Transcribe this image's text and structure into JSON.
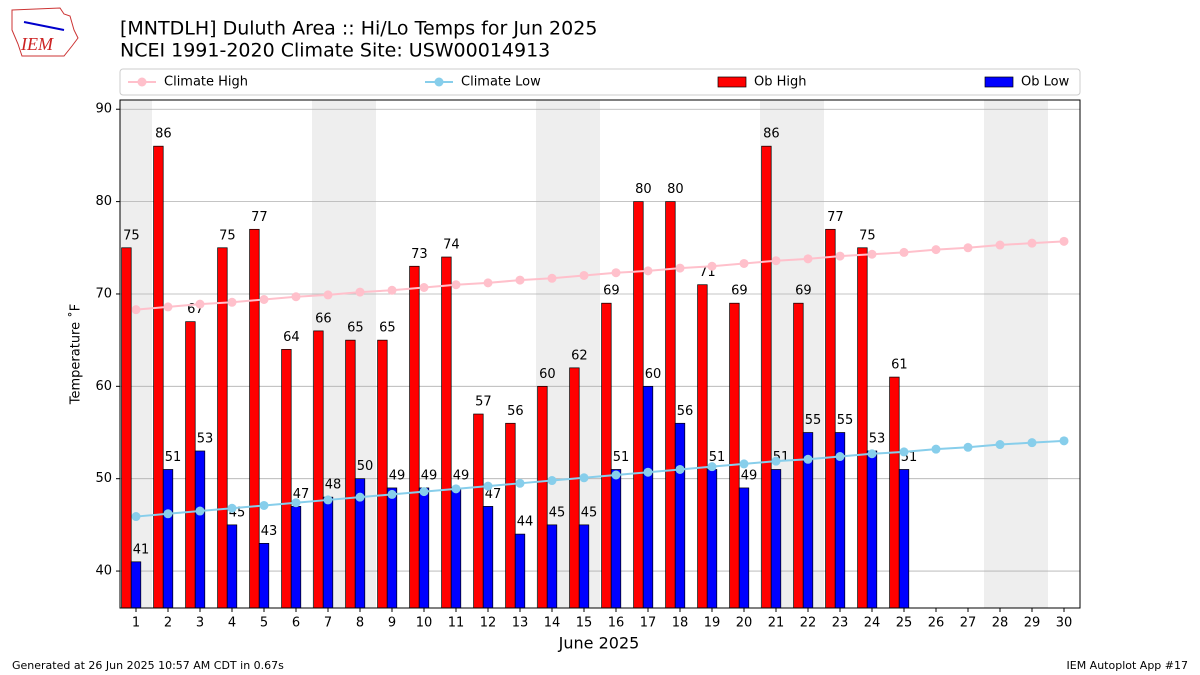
{
  "logo_text": "IEM",
  "footer_left": "Generated at 26 Jun 2025 10:57 AM CDT in 0.67s",
  "footer_right": "IEM Autoplot App #17",
  "chart_data": {
    "type": "bar",
    "title": "[MNTDLH] Duluth Area :: Hi/Lo Temps for Jun 2025",
    "subtitle": "NCEI 1991-2020 Climate Site: USW00014913",
    "xlabel": "June 2025",
    "ylabel": "Temperature ˚F",
    "x": [
      1,
      2,
      3,
      4,
      5,
      6,
      7,
      8,
      9,
      10,
      11,
      12,
      13,
      14,
      15,
      16,
      17,
      18,
      19,
      20,
      21,
      22,
      23,
      24,
      25,
      26,
      27,
      28,
      29,
      30
    ],
    "shaded": [
      true,
      false,
      false,
      false,
      false,
      false,
      true,
      true,
      false,
      false,
      false,
      false,
      false,
      true,
      true,
      false,
      false,
      false,
      false,
      false,
      true,
      true,
      false,
      false,
      false,
      false,
      false,
      true,
      true,
      false
    ],
    "series": [
      {
        "name": "Climate High",
        "type": "line",
        "color": "#ffc0cb",
        "values": [
          68.3,
          68.6,
          68.9,
          69.1,
          69.4,
          69.7,
          69.9,
          70.2,
          70.4,
          70.7,
          71.0,
          71.2,
          71.5,
          71.7,
          72.0,
          72.3,
          72.5,
          72.8,
          73.0,
          73.3,
          73.6,
          73.8,
          74.1,
          74.3,
          74.5,
          74.8,
          75.0,
          75.3,
          75.5,
          75.7
        ]
      },
      {
        "name": "Climate Low",
        "type": "line",
        "color": "#87ceeb",
        "values": [
          45.9,
          46.2,
          46.5,
          46.8,
          47.1,
          47.4,
          47.7,
          48.0,
          48.3,
          48.6,
          48.9,
          49.2,
          49.5,
          49.8,
          50.1,
          50.4,
          50.7,
          51.0,
          51.3,
          51.6,
          51.9,
          52.1,
          52.4,
          52.7,
          52.9,
          53.2,
          53.4,
          53.7,
          53.9,
          54.1
        ]
      },
      {
        "name": "Ob High",
        "type": "bar",
        "color": "#ff0000",
        "values": [
          75,
          86,
          67,
          75,
          77,
          64,
          66,
          65,
          65,
          73,
          74,
          57,
          56,
          60,
          62,
          69,
          80,
          80,
          71,
          69,
          86,
          69,
          77,
          75,
          61,
          null,
          null,
          null,
          null,
          null
        ]
      },
      {
        "name": "Ob Low",
        "type": "bar",
        "color": "#0000ff",
        "values": [
          41,
          51,
          53,
          45,
          43,
          47,
          48,
          50,
          49,
          49,
          49,
          47,
          44,
          45,
          45,
          51,
          60,
          56,
          51,
          49,
          51,
          55,
          55,
          53,
          51,
          null,
          null,
          null,
          null,
          null
        ]
      }
    ],
    "xlim": [
      0.5,
      30.5
    ],
    "xticks": [
      1,
      2,
      3,
      4,
      5,
      6,
      7,
      8,
      9,
      10,
      11,
      12,
      13,
      14,
      15,
      16,
      17,
      18,
      19,
      20,
      21,
      22,
      23,
      24,
      25,
      26,
      27,
      28,
      29,
      30
    ],
    "ylim": [
      36,
      91
    ],
    "yticks": [
      40,
      50,
      60,
      70,
      80,
      90
    ],
    "grid": true,
    "legend": "top"
  }
}
